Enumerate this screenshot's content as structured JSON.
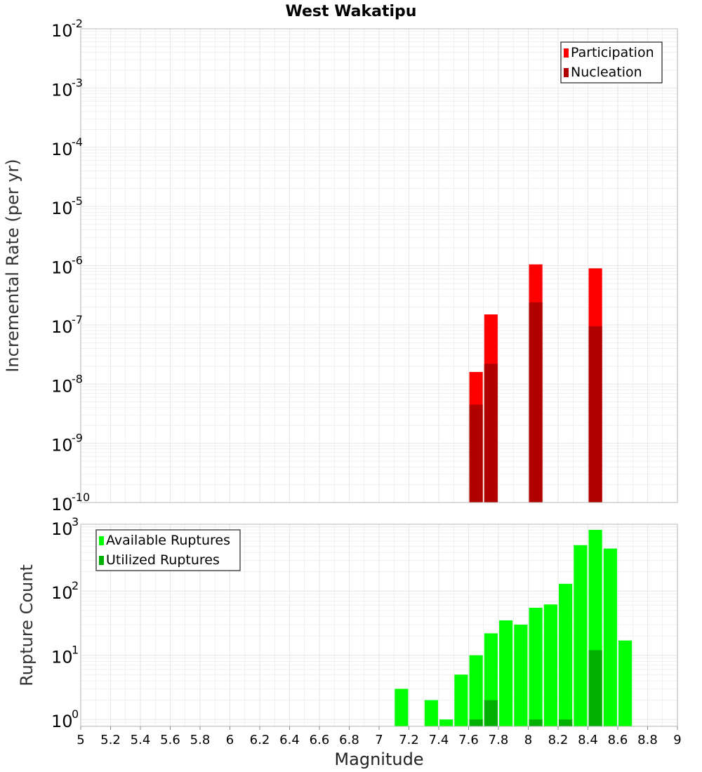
{
  "title": "West Wakatipu",
  "xlabel": "Magnitude",
  "colors": {
    "participation": "#ff0000",
    "nucleation": "#b00000",
    "available": "#00ff00",
    "utilized": "#00b000",
    "grid": "#e8e8e8",
    "frame": "#b8b8b8"
  },
  "chart_data": [
    {
      "type": "bar",
      "name": "rate",
      "scale": "log",
      "ylabel": "Incremental Rate (per yr)",
      "xlim": [
        5,
        9
      ],
      "ylim": [
        1e-10,
        0.01
      ],
      "yticks": [
        {
          "base": "10",
          "exp": "-10"
        },
        {
          "base": "10",
          "exp": "-9"
        },
        {
          "base": "10",
          "exp": "-8"
        },
        {
          "base": "10",
          "exp": "-7"
        },
        {
          "base": "10",
          "exp": "-6"
        },
        {
          "base": "10",
          "exp": "-5"
        },
        {
          "base": "10",
          "exp": "-4"
        },
        {
          "base": "10",
          "exp": "-3"
        },
        {
          "base": "10",
          "exp": "-2"
        }
      ],
      "legend": {
        "position": "top-right",
        "entries": [
          "Participation",
          "Nucleation"
        ]
      },
      "series": [
        {
          "name": "Participation",
          "x": [
            7.65,
            7.75,
            8.05,
            8.45
          ],
          "values": [
            1.6e-08,
            1.5e-07,
            1.05e-06,
            9e-07
          ]
        },
        {
          "name": "Nucleation",
          "x": [
            7.65,
            7.75,
            8.05,
            8.45
          ],
          "values": [
            4.5e-09,
            2.2e-08,
            2.4e-07,
            9.5e-08
          ]
        }
      ]
    },
    {
      "type": "bar",
      "name": "count",
      "scale": "log",
      "ylabel": "Rupture Count",
      "xlim": [
        5,
        9
      ],
      "ylim": [
        0.78,
        1100
      ],
      "yticks": [
        {
          "base": "10",
          "exp": "0"
        },
        {
          "base": "10",
          "exp": "1"
        },
        {
          "base": "10",
          "exp": "2"
        },
        {
          "base": "10",
          "exp": "3"
        }
      ],
      "xticks": [
        "5",
        "5.2",
        "5.4",
        "5.6",
        "5.8",
        "6",
        "6.2",
        "6.4",
        "6.6",
        "6.8",
        "7",
        "7.2",
        "7.4",
        "7.6",
        "7.8",
        "8",
        "8.2",
        "8.4",
        "8.6",
        "8.8",
        "9"
      ],
      "legend": {
        "position": "top-left",
        "entries": [
          "Available Ruptures",
          "Utilized Ruptures"
        ]
      },
      "series": [
        {
          "name": "Available Ruptures",
          "x": [
            7.15,
            7.35,
            7.45,
            7.55,
            7.65,
            7.75,
            7.85,
            7.95,
            8.05,
            8.15,
            8.25,
            8.35,
            8.45,
            8.55,
            8.65
          ],
          "values": [
            3,
            2,
            1,
            5,
            10,
            22,
            35,
            30,
            55,
            62,
            130,
            520,
            900,
            460,
            17
          ]
        },
        {
          "name": "Utilized Ruptures",
          "x": [
            7.65,
            7.75,
            8.05,
            8.25,
            8.45
          ],
          "values": [
            1,
            2,
            1,
            1,
            12
          ]
        }
      ]
    }
  ]
}
